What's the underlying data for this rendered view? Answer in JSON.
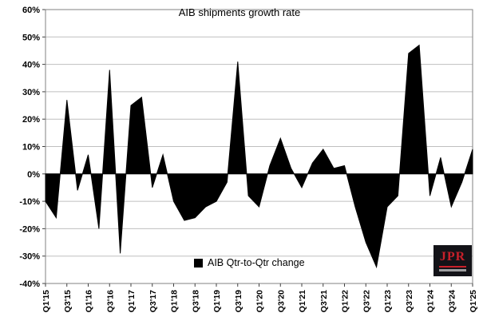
{
  "chart_data": {
    "type": "area",
    "title": "AIB shipments growth rate",
    "xlabel": "",
    "ylabel": "",
    "ylim": [
      -40,
      60
    ],
    "ytick_step": 10,
    "ytick_format": "percent",
    "grid": true,
    "legend_position": "bottom-center-inside",
    "x_labels_shown": [
      "Q1'15",
      "Q3'15",
      "Q1'16",
      "Q3'16",
      "Q1'17",
      "Q3'17",
      "Q1'18",
      "Q3'18",
      "Q1'19",
      "Q3'19",
      "Q1'20",
      "Q3'20",
      "Q1'21",
      "Q3'21",
      "Q1'22",
      "Q3'22",
      "Q1'23",
      "Q3'23",
      "Q1'24",
      "Q3'24",
      "Q1'25"
    ],
    "categories": [
      "Q1'15",
      "Q2'15",
      "Q3'15",
      "Q4'15",
      "Q1'16",
      "Q2'16",
      "Q3'16",
      "Q4'16",
      "Q1'17",
      "Q2'17",
      "Q3'17",
      "Q4'17",
      "Q1'18",
      "Q2'18",
      "Q3'18",
      "Q4'18",
      "Q1'19",
      "Q2'19",
      "Q3'19",
      "Q4'19",
      "Q1'20",
      "Q2'20",
      "Q3'20",
      "Q4'20",
      "Q1'21",
      "Q2'21",
      "Q3'21",
      "Q4'21",
      "Q1'22",
      "Q2'22",
      "Q3'22",
      "Q4'22",
      "Q1'23",
      "Q2'23",
      "Q3'23",
      "Q4'23",
      "Q1'24",
      "Q2'24",
      "Q3'24",
      "Q4'24",
      "Q1'25"
    ],
    "series": [
      {
        "name": "AIB Qtr-to-Qtr change",
        "color": "#000000",
        "values": [
          -10,
          -16,
          27,
          -6,
          7,
          -20,
          38,
          -29,
          25,
          28,
          -5,
          7,
          -10,
          -17,
          -16,
          -12,
          -10,
          -3,
          41,
          -8,
          -12,
          3,
          13,
          2,
          -5,
          4,
          9,
          2,
          3,
          -12,
          -25,
          -34,
          -12,
          -8,
          44,
          47,
          -8,
          6,
          -12,
          -3,
          9
        ]
      }
    ]
  },
  "branding": {
    "logo_text": "JPR"
  },
  "colors": {
    "series_fill": "#000000",
    "gridline": "#bfbfbf",
    "plot_border": "#808080",
    "axis_tick": "#404040",
    "logo_bg": "#131318",
    "logo_red": "#c8202a",
    "background": "#ffffff"
  }
}
